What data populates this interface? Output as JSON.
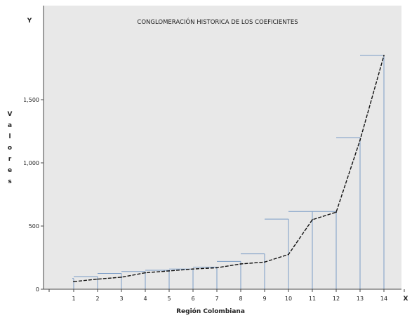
{
  "chart_data": {
    "type": "line",
    "title": "CONGLOMERACIÓN HISTORICA DE LOS COEFICIENTES",
    "xlabel": "Región Colombiana",
    "ylabel": "Valores",
    "x_axis_letter": "X",
    "y_axis_letter": "Y",
    "categories": [
      "1",
      "2",
      "3",
      "4",
      "5",
      "6",
      "7",
      "8",
      "9",
      "10",
      "11",
      "12",
      "13",
      "14"
    ],
    "y_ticks": [
      {
        "value": 0,
        "label": "0"
      },
      {
        "value": 500,
        "label": "500"
      },
      {
        "value": 1000,
        "label": "1,000"
      },
      {
        "value": 1500,
        "label": "1,500"
      }
    ],
    "ylim": [
      0,
      2200
    ],
    "series": [
      {
        "kind": "line",
        "values": [
          60,
          80,
          95,
          130,
          145,
          160,
          170,
          200,
          215,
          275,
          550,
          610,
          1180,
          1850
        ],
        "color": "#111111"
      },
      {
        "kind": "step",
        "values": [
          85,
          100,
          125,
          140,
          150,
          160,
          175,
          220,
          280,
          555,
          615,
          615,
          1200,
          1850
        ],
        "color": "#7a9cc6"
      }
    ],
    "grid": false
  }
}
